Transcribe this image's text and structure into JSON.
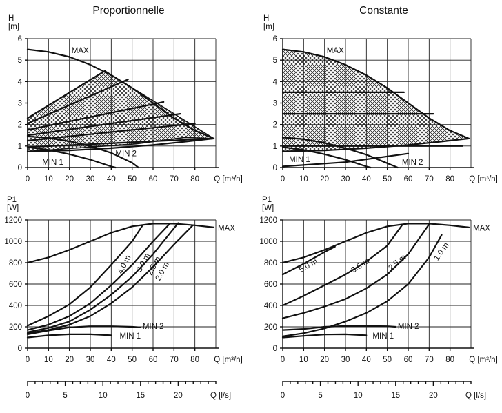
{
  "chart_data": [
    {
      "id": "prop_head",
      "type": "line",
      "title": "Proportionnelle",
      "ylabel": [
        "H",
        "[m]"
      ],
      "xlabel": "Q [m³/h]",
      "xlim": [
        0,
        90
      ],
      "ylim": [
        0,
        6
      ],
      "xticks": [
        0,
        10,
        20,
        30,
        40,
        50,
        60,
        70,
        80
      ],
      "yticks": [
        0,
        1,
        2,
        3,
        4,
        5,
        6
      ],
      "grid": true,
      "hatched_region": [
        [
          0,
          2.3
        ],
        [
          37,
          4.5
        ],
        [
          89,
          1.35
        ],
        [
          75,
          1.4
        ],
        [
          52,
          1.1
        ],
        [
          0,
          0.75
        ]
      ],
      "series": [
        {
          "name": "MAX",
          "label_at": [
            21,
            5.45
          ],
          "points": [
            [
              0,
              5.5
            ],
            [
              10,
              5.38
            ],
            [
              20,
              5.15
            ],
            [
              30,
              4.78
            ],
            [
              40,
              4.3
            ],
            [
              50,
              3.7
            ],
            [
              60,
              3.0
            ],
            [
              70,
              2.3
            ],
            [
              80,
              1.72
            ],
            [
              89,
              1.35
            ]
          ]
        },
        {
          "points": [
            [
              0,
              2.3
            ],
            [
              37,
              4.5
            ]
          ]
        },
        {
          "points": [
            [
              0,
              2.05
            ],
            [
              48,
              4.1
            ]
          ]
        },
        {
          "points": [
            [
              0,
              1.75
            ],
            [
              65,
              3.05
            ]
          ]
        },
        {
          "points": [
            [
              0,
              1.5
            ],
            [
              73,
              2.5
            ]
          ]
        },
        {
          "points": [
            [
              0,
              1.25
            ],
            [
              80,
              2.05
            ]
          ]
        },
        {
          "points": [
            [
              0,
              0.95
            ],
            [
              89,
              1.35
            ]
          ]
        },
        {
          "name": "MIN 2",
          "label_at": [
            42,
            0.65
          ],
          "points": [
            [
              0,
              1.45
            ],
            [
              10,
              1.38
            ],
            [
              20,
              1.22
            ],
            [
              30,
              1.0
            ],
            [
              40,
              0.68
            ],
            [
              50,
              0.22
            ],
            [
              53,
              0.0
            ]
          ]
        },
        {
          "points": [
            [
              0,
              0.75
            ],
            [
              20,
              0.8
            ],
            [
              40,
              0.9
            ],
            [
              60,
              1.05
            ],
            [
              75,
              1.2
            ],
            [
              89,
              1.35
            ]
          ]
        },
        {
          "name": "MIN 1",
          "label_at": [
            7,
            0.25
          ],
          "points": [
            [
              0,
              0.95
            ],
            [
              10,
              0.82
            ],
            [
              20,
              0.62
            ],
            [
              30,
              0.37
            ],
            [
              40,
              0.05
            ],
            [
              42,
              0.0
            ]
          ]
        }
      ]
    },
    {
      "id": "const_head",
      "type": "line",
      "title": "Constante",
      "ylabel": [
        "H",
        "[m]"
      ],
      "xlabel": "Q [m³/h]",
      "xlim": [
        0,
        90
      ],
      "ylim": [
        0,
        6
      ],
      "xticks": [
        0,
        10,
        20,
        30,
        40,
        50,
        60,
        70,
        80
      ],
      "yticks": [
        0,
        1,
        2,
        3,
        4,
        5,
        6
      ],
      "grid": true,
      "hatched_region": [
        [
          0,
          5.5
        ],
        [
          10,
          5.38
        ],
        [
          20,
          5.15
        ],
        [
          30,
          4.78
        ],
        [
          40,
          4.3
        ],
        [
          50,
          3.7
        ],
        [
          60,
          3.0
        ],
        [
          70,
          2.3
        ],
        [
          80,
          1.72
        ],
        [
          89,
          1.35
        ],
        [
          75,
          1.2
        ],
        [
          60,
          1.05
        ],
        [
          40,
          0.9
        ],
        [
          20,
          0.8
        ],
        [
          0,
          0.75
        ]
      ],
      "series": [
        {
          "name": "MAX",
          "label_at": [
            21,
            5.45
          ],
          "points": [
            [
              0,
              5.5
            ],
            [
              10,
              5.38
            ],
            [
              20,
              5.15
            ],
            [
              30,
              4.78
            ],
            [
              40,
              4.3
            ],
            [
              50,
              3.7
            ],
            [
              60,
              3.0
            ],
            [
              70,
              2.3
            ],
            [
              80,
              1.72
            ],
            [
              89,
              1.35
            ]
          ]
        },
        {
          "points": [
            [
              0,
              3.5
            ],
            [
              58,
              3.5
            ]
          ]
        },
        {
          "points": [
            [
              0,
              2.5
            ],
            [
              72,
              2.5
            ]
          ]
        },
        {
          "points": [
            [
              0,
              1.0
            ],
            [
              86,
              1.0
            ]
          ]
        },
        {
          "points": [
            [
              0,
              0.75
            ],
            [
              20,
              0.8
            ],
            [
              40,
              0.9
            ],
            [
              60,
              1.05
            ],
            [
              75,
              1.2
            ],
            [
              89,
              1.35
            ]
          ]
        },
        {
          "name": "MIN 2",
          "label_at": [
            57,
            0.25
          ],
          "points": [
            [
              0,
              1.4
            ],
            [
              10,
              1.32
            ],
            [
              20,
              1.15
            ],
            [
              30,
              0.9
            ],
            [
              40,
              0.6
            ],
            [
              50,
              0.2
            ],
            [
              55,
              0.0
            ]
          ]
        },
        {
          "name": "MIN 1",
          "label_at": [
            3,
            0.38
          ],
          "points": [
            [
              0,
              0.95
            ],
            [
              10,
              0.82
            ],
            [
              20,
              0.62
            ],
            [
              30,
              0.37
            ],
            [
              40,
              0.05
            ],
            [
              42,
              0.0
            ]
          ]
        },
        {
          "points": [
            [
              0,
              0.05
            ],
            [
              30,
              0.25
            ],
            [
              60,
              0.65
            ]
          ]
        }
      ]
    },
    {
      "id": "prop_power",
      "type": "line",
      "ylabel": [
        "P1",
        "[W]"
      ],
      "xlabel": "Q [m³/h]",
      "xlim": [
        0,
        90
      ],
      "ylim": [
        0,
        1200
      ],
      "xticks": [
        0,
        10,
        20,
        30,
        40,
        50,
        60,
        70,
        80
      ],
      "yticks": [
        0,
        200,
        400,
        600,
        800,
        1000,
        1200
      ],
      "grid": true,
      "series": [
        {
          "name": "MAX",
          "label_at": [
            91,
            1125
          ],
          "points": [
            [
              0,
              800
            ],
            [
              10,
              850
            ],
            [
              20,
              920
            ],
            [
              30,
              1000
            ],
            [
              40,
              1080
            ],
            [
              50,
              1140
            ],
            [
              60,
              1165
            ],
            [
              70,
              1165
            ],
            [
              80,
              1150
            ],
            [
              89,
              1130
            ]
          ]
        },
        {
          "name": "4.0 m",
          "label_at": [
            44,
            700
          ],
          "label_angle": -64,
          "points": [
            [
              0,
              210
            ],
            [
              10,
              300
            ],
            [
              20,
              410
            ],
            [
              30,
              570
            ],
            [
              40,
              780
            ],
            [
              50,
              1000
            ],
            [
              55,
              1150
            ]
          ]
        },
        {
          "name": "3.0 m",
          "label_at": [
            53,
            720
          ],
          "label_angle": -62,
          "points": [
            [
              0,
              170
            ],
            [
              10,
              220
            ],
            [
              20,
              300
            ],
            [
              30,
              420
            ],
            [
              40,
              590
            ],
            [
              50,
              780
            ],
            [
              60,
              1000
            ],
            [
              68,
              1165
            ]
          ]
        },
        {
          "name": "2.5 m",
          "label_at": [
            58,
            690
          ],
          "label_angle": -62,
          "points": [
            [
              0,
              150
            ],
            [
              10,
              190
            ],
            [
              20,
              250
            ],
            [
              30,
              360
            ],
            [
              40,
              500
            ],
            [
              50,
              670
            ],
            [
              60,
              880
            ],
            [
              72,
              1170
            ]
          ]
        },
        {
          "name": "2.0 m",
          "label_at": [
            62,
            640
          ],
          "label_angle": -62,
          "points": [
            [
              0,
              140
            ],
            [
              10,
              170
            ],
            [
              20,
              220
            ],
            [
              30,
              300
            ],
            [
              40,
              420
            ],
            [
              50,
              570
            ],
            [
              60,
              760
            ],
            [
              70,
              970
            ],
            [
              79,
              1150
            ]
          ]
        },
        {
          "name": "MIN 2",
          "label_at": [
            55,
            205
          ],
          "points": [
            [
              0,
              130
            ],
            [
              10,
              165
            ],
            [
              20,
              195
            ],
            [
              30,
              205
            ],
            [
              40,
              205
            ],
            [
              50,
              200
            ],
            [
              54,
              195
            ]
          ]
        },
        {
          "name": "MIN 1",
          "label_at": [
            44,
            115
          ],
          "points": [
            [
              0,
              100
            ],
            [
              10,
              120
            ],
            [
              20,
              130
            ],
            [
              30,
              130
            ],
            [
              40,
              120
            ]
          ]
        }
      ]
    },
    {
      "id": "const_power",
      "type": "line",
      "ylabel": [
        "P1",
        "[W]"
      ],
      "xlabel": "Q [m³/h]",
      "xlim": [
        0,
        90
      ],
      "ylim": [
        0,
        1200
      ],
      "xticks": [
        0,
        10,
        20,
        30,
        40,
        50,
        60,
        70,
        80
      ],
      "yticks": [
        0,
        200,
        400,
        600,
        800,
        1000,
        1200
      ],
      "grid": true,
      "series": [
        {
          "name": "MAX",
          "label_at": [
            91,
            1125
          ],
          "points": [
            [
              0,
              800
            ],
            [
              10,
              850
            ],
            [
              20,
              920
            ],
            [
              30,
              1000
            ],
            [
              40,
              1080
            ],
            [
              50,
              1140
            ],
            [
              60,
              1165
            ],
            [
              70,
              1165
            ],
            [
              80,
              1150
            ],
            [
              89,
              1130
            ]
          ]
        },
        {
          "name": "5.0 m",
          "label_at": [
            8,
            730
          ],
          "label_angle": -30,
          "points": [
            [
              0,
              690
            ],
            [
              10,
              790
            ],
            [
              20,
              900
            ],
            [
              25,
              950
            ]
          ]
        },
        {
          "name": "3.5 m",
          "label_at": [
            33,
            725
          ],
          "label_angle": -33,
          "points": [
            [
              0,
              400
            ],
            [
              10,
              490
            ],
            [
              20,
              590
            ],
            [
              30,
              690
            ],
            [
              40,
              810
            ],
            [
              50,
              960
            ],
            [
              57,
              1150
            ]
          ]
        },
        {
          "name": "2.5 m",
          "label_at": [
            51,
            745
          ],
          "label_angle": -40,
          "points": [
            [
              0,
              280
            ],
            [
              10,
              330
            ],
            [
              20,
              390
            ],
            [
              30,
              460
            ],
            [
              40,
              560
            ],
            [
              50,
              690
            ],
            [
              60,
              880
            ],
            [
              70,
              1160
            ]
          ]
        },
        {
          "name": "1.0 m",
          "label_at": [
            73,
            830
          ],
          "label_angle": -55,
          "points": [
            [
              0,
              110
            ],
            [
              10,
              140
            ],
            [
              20,
              185
            ],
            [
              30,
              250
            ],
            [
              40,
              330
            ],
            [
              50,
              440
            ],
            [
              60,
              600
            ],
            [
              70,
              850
            ],
            [
              76,
              1060
            ]
          ]
        },
        {
          "name": "MIN 2",
          "label_at": [
            55,
            205
          ],
          "points": [
            [
              0,
              170
            ],
            [
              10,
              180
            ],
            [
              20,
              200
            ],
            [
              30,
              208
            ],
            [
              40,
              208
            ],
            [
              50,
              205
            ],
            [
              54,
              200
            ]
          ]
        },
        {
          "name": "MIN 1",
          "label_at": [
            43,
            115
          ],
          "points": [
            [
              0,
              100
            ],
            [
              10,
              115
            ],
            [
              20,
              128
            ],
            [
              30,
              130
            ],
            [
              40,
              120
            ]
          ]
        }
      ]
    },
    {
      "id": "prop_flow_ls",
      "type": "axis",
      "xlabel": "Q [l/s]",
      "xlim": [
        0,
        25
      ],
      "xticks": [
        0,
        5,
        10,
        15,
        20
      ],
      "minor_step": 1
    },
    {
      "id": "const_flow_ls",
      "type": "axis",
      "xlabel": "Q [l/s]",
      "xlim": [
        0,
        25
      ],
      "xticks": [
        0,
        5,
        10,
        15,
        20
      ],
      "minor_step": 1
    }
  ]
}
